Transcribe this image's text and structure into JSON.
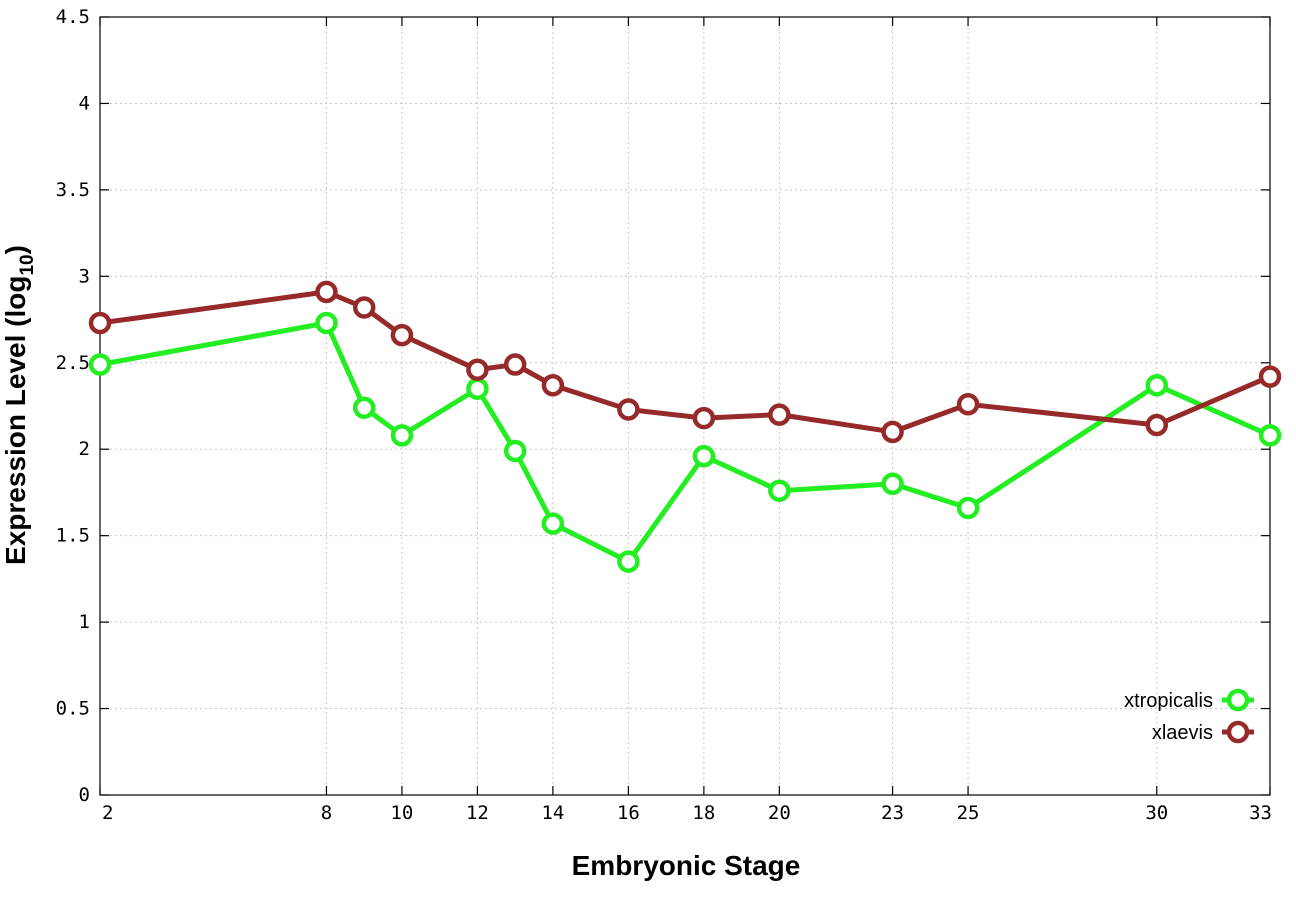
{
  "chart_data": {
    "type": "line",
    "xlabel": "Embryonic Stage",
    "ylabel_main": "Expression Level (log",
    "ylabel_sub": "10",
    "ylabel_close": ")",
    "xlim": [
      2,
      33
    ],
    "ylim": [
      0,
      4.5
    ],
    "x_ticks": [
      2,
      8,
      10,
      12,
      14,
      16,
      18,
      20,
      23,
      25,
      30,
      33
    ],
    "y_ticks": [
      {
        "value": 0,
        "label": "0"
      },
      {
        "value": 0.5,
        "label": "0.5"
      },
      {
        "value": 1,
        "label": "1"
      },
      {
        "value": 1.5,
        "label": "1.5"
      },
      {
        "value": 2,
        "label": "2"
      },
      {
        "value": 2.5,
        "label": "2.5"
      },
      {
        "value": 3,
        "label": "3"
      },
      {
        "value": 3.5,
        "label": "3.5"
      },
      {
        "value": 4,
        "label": "4"
      },
      {
        "value": 4.5,
        "label": "4.5"
      }
    ],
    "grid": true,
    "legend_position": "bottom-right",
    "series": [
      {
        "name": "xtropicalis",
        "color": "#22ee22",
        "points": [
          {
            "x": 2,
            "y": 2.49
          },
          {
            "x": 8,
            "y": 2.73
          },
          {
            "x": 9,
            "y": 2.24
          },
          {
            "x": 10,
            "y": 2.08
          },
          {
            "x": 12,
            "y": 2.35
          },
          {
            "x": 13,
            "y": 1.99
          },
          {
            "x": 14,
            "y": 1.57
          },
          {
            "x": 16,
            "y": 1.35
          },
          {
            "x": 18,
            "y": 1.96
          },
          {
            "x": 20,
            "y": 1.76
          },
          {
            "x": 23,
            "y": 1.8
          },
          {
            "x": 25,
            "y": 1.66
          },
          {
            "x": 30,
            "y": 2.37
          },
          {
            "x": 33,
            "y": 2.08
          }
        ]
      },
      {
        "name": "xlaevis",
        "color": "#962a2a",
        "points": [
          {
            "x": 2,
            "y": 2.73
          },
          {
            "x": 8,
            "y": 2.91
          },
          {
            "x": 9,
            "y": 2.82
          },
          {
            "x": 10,
            "y": 2.66
          },
          {
            "x": 12,
            "y": 2.46
          },
          {
            "x": 13,
            "y": 2.49
          },
          {
            "x": 14,
            "y": 2.37
          },
          {
            "x": 16,
            "y": 2.23
          },
          {
            "x": 18,
            "y": 2.18
          },
          {
            "x": 20,
            "y": 2.2
          },
          {
            "x": 23,
            "y": 2.1
          },
          {
            "x": 25,
            "y": 2.26
          },
          {
            "x": 30,
            "y": 2.14
          },
          {
            "x": 33,
            "y": 2.42
          }
        ]
      }
    ]
  }
}
